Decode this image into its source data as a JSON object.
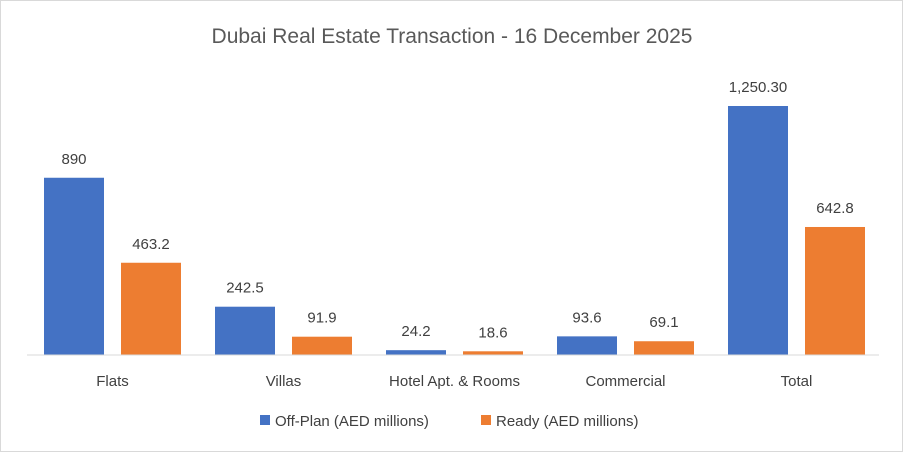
{
  "chart_data": {
    "type": "bar",
    "title": "Dubai Real Estate Transaction - 16 December 2025",
    "categories": [
      "Flats",
      "Villas",
      "Hotel Apt. & Rooms",
      "Commercial",
      "Total"
    ],
    "series": [
      {
        "name": "Off-Plan (AED millions)",
        "color": "#4472C4",
        "values": [
          890,
          242.5,
          24.2,
          93.6,
          1250.3
        ],
        "labels": [
          "890",
          "242.5",
          "24.2",
          "93.6",
          "1,250.30"
        ]
      },
      {
        "name": "Ready (AED millions)",
        "color": "#ED7D31",
        "values": [
          463.2,
          91.9,
          18.6,
          69.1,
          642.8
        ],
        "labels": [
          "463.2",
          "91.9",
          "18.6",
          "69.1",
          "642.8"
        ]
      }
    ],
    "ylim": [
      0,
      1250.3
    ],
    "xlabel": "",
    "ylabel": "",
    "grid": false,
    "legend_position": "bottom"
  }
}
